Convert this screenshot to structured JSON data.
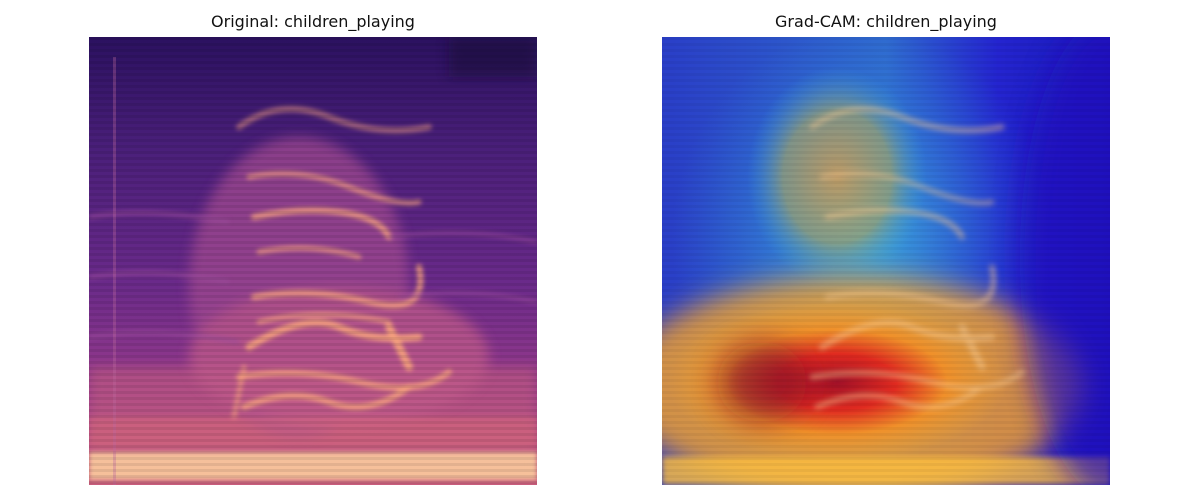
{
  "panels": {
    "left": {
      "title": "Original: children_playing"
    },
    "right": {
      "title": "Grad-CAM: children_playing"
    }
  },
  "colors": {
    "spectrogram_dark": "#2a0f5a",
    "spectrogram_mid": "#7a2f8f",
    "spectrogram_hot": "#f08a6a",
    "spectrogram_peak": "#ffe3b0",
    "gradcam_cold": "#1a1fd0",
    "gradcam_cool": "#3aa0d8",
    "gradcam_warm": "#f0a030",
    "gradcam_hot": "#e02a20"
  }
}
